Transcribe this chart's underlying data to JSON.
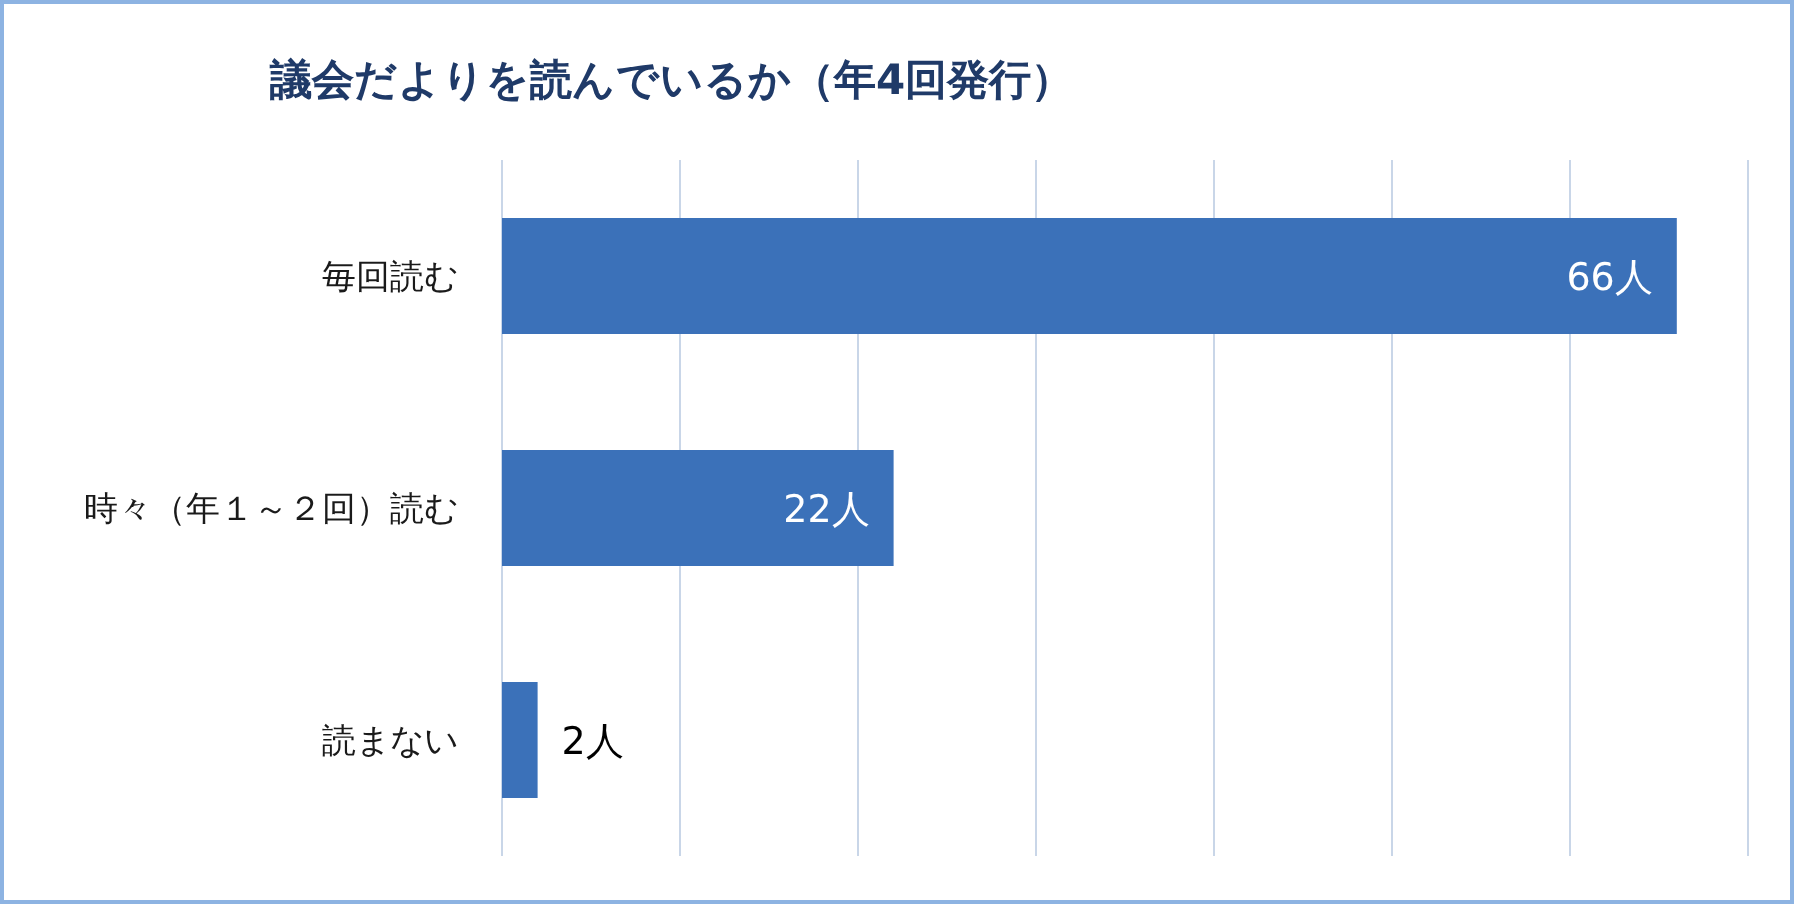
{
  "chart_data": {
    "type": "bar",
    "orientation": "horizontal",
    "title": "議会だよりを読んでいるか（年4回発行）",
    "categories": [
      "毎回読む",
      "時々（年１～２回）読む",
      "読まない"
    ],
    "values": [
      66,
      22,
      2
    ],
    "value_labels": [
      "66人",
      "22人",
      "2人"
    ],
    "color": "#3b71b9",
    "xlim": [
      0,
      70
    ],
    "xticks": [
      {
        "value": 0,
        "label": null
      },
      {
        "value": 10,
        "label": null
      },
      {
        "value": 20,
        "label": null
      },
      {
        "value": 30,
        "label": null
      },
      {
        "value": 40,
        "label": null
      },
      {
        "value": 50,
        "label": null
      },
      {
        "value": 60,
        "label": null
      },
      {
        "value": 70,
        "label": null
      }
    ],
    "grid": "x",
    "tick_labels": "y"
  }
}
